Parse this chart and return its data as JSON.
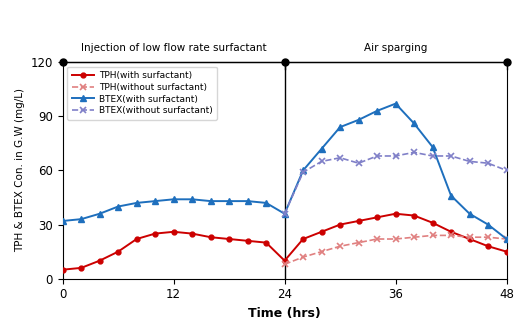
{
  "tph_with": {
    "x": [
      0,
      2,
      4,
      6,
      8,
      10,
      12,
      14,
      16,
      18,
      20,
      22,
      24,
      26,
      28,
      30,
      32,
      34,
      36,
      38,
      40,
      42,
      44,
      46,
      48
    ],
    "y": [
      5,
      6,
      10,
      15,
      22,
      25,
      26,
      25,
      23,
      22,
      21,
      20,
      10,
      22,
      26,
      30,
      32,
      34,
      36,
      35,
      31,
      26,
      22,
      18,
      15
    ]
  },
  "tph_without": {
    "x": [
      24,
      26,
      28,
      30,
      32,
      34,
      36,
      38,
      40,
      42,
      44,
      46,
      48
    ],
    "y": [
      8,
      12,
      15,
      18,
      20,
      22,
      22,
      23,
      24,
      24,
      23,
      23,
      22
    ]
  },
  "btex_with": {
    "x": [
      0,
      2,
      4,
      6,
      8,
      10,
      12,
      14,
      16,
      18,
      20,
      22,
      24,
      26,
      28,
      30,
      32,
      34,
      36,
      38,
      40,
      42,
      44,
      46,
      48
    ],
    "y": [
      32,
      33,
      36,
      40,
      42,
      43,
      44,
      44,
      43,
      43,
      43,
      42,
      36,
      60,
      72,
      84,
      88,
      93,
      97,
      86,
      73,
      46,
      36,
      30,
      22
    ]
  },
  "btex_without": {
    "x": [
      24,
      26,
      28,
      30,
      32,
      34,
      36,
      38,
      40,
      42,
      44,
      46,
      48
    ],
    "y": [
      36,
      59,
      65,
      67,
      64,
      68,
      68,
      70,
      68,
      68,
      65,
      64,
      60
    ]
  },
  "colors": {
    "tph_with": "#cc0000",
    "tph_without": "#e08080",
    "btex_with": "#1e6fbd",
    "btex_without": "#8080c8"
  },
  "section1_label": "Injection of low flow rate surfactant",
  "section2_label": "Air sparging",
  "divider_x": 24,
  "xlabel": "Time (hrs)",
  "ylabel": "TPH & BTEX Con. in G.W (mg/L)",
  "xlim": [
    0,
    48
  ],
  "ylim": [
    0,
    120
  ],
  "xticks": [
    0,
    12,
    24,
    36,
    48
  ],
  "yticks": [
    0,
    30,
    60,
    90,
    120
  ],
  "legend_labels": [
    "TPH(with surfactant)",
    "TPH(without surfactant)",
    "BTEX(with surfactant)",
    "BTEX(without surfactant)"
  ]
}
